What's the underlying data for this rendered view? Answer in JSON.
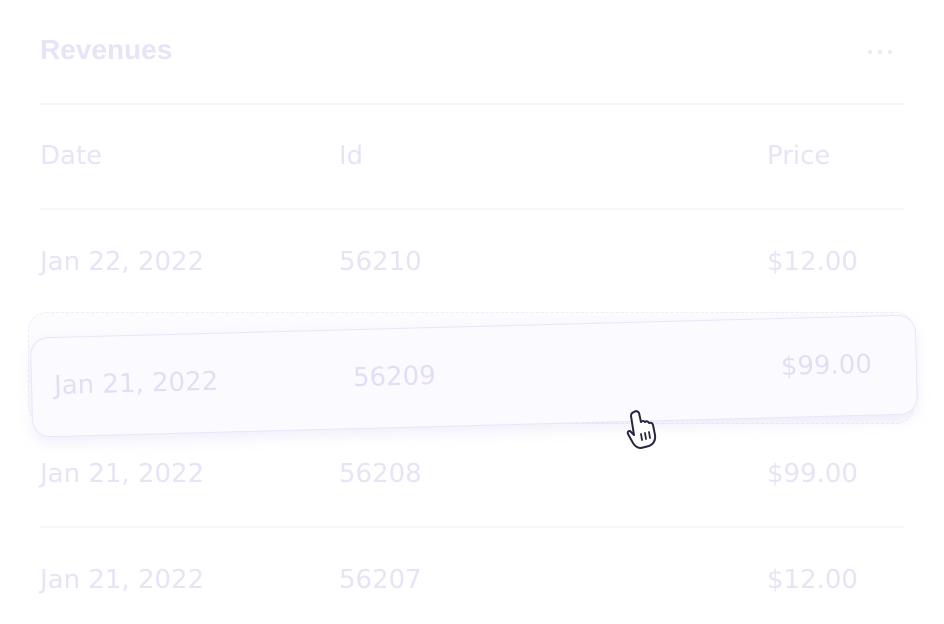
{
  "card": {
    "title": "Revenues",
    "more_icon": "more-horizontal-icon"
  },
  "table": {
    "headers": [
      "Date",
      "Id",
      "Price"
    ],
    "rows": [
      {
        "date": "Jan 22, 2022",
        "id": "56210",
        "price": "$12.00"
      },
      {
        "date": "Jan 21, 2022",
        "id": "56209",
        "price": "$99.00"
      },
      {
        "date": "Jan 21, 2022",
        "id": "56208",
        "price": "$99.00"
      },
      {
        "date": "Jan 21, 2022",
        "id": "56207",
        "price": "$12.00"
      }
    ]
  },
  "cursor": "hand-grab-icon",
  "colors": {
    "text": "#e6e4f5",
    "divider": "#f6f5fc",
    "dragged_row_border": "#e9e6f8"
  }
}
